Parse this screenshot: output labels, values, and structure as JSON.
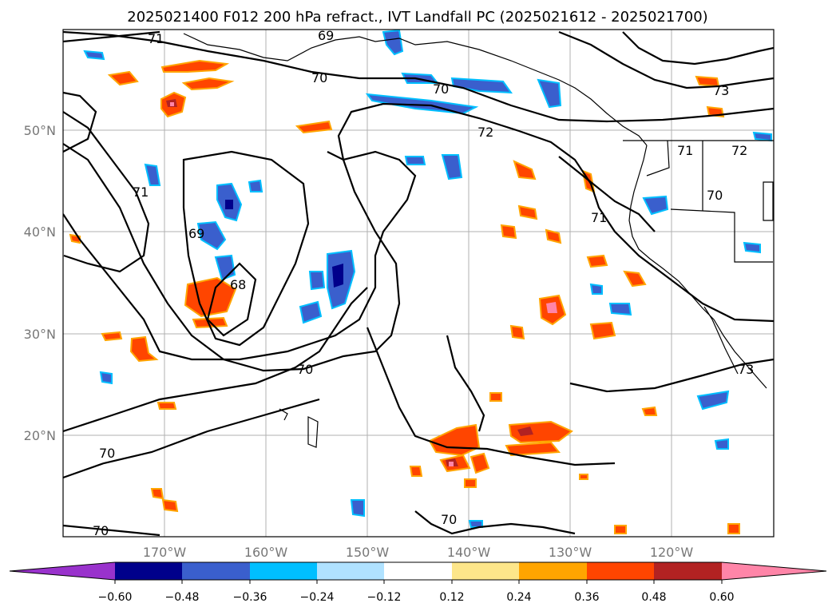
{
  "title": "2025021400 F012 200 hPa refract., IVT Landfall PC (2025021612 - 2025021700)",
  "lon_labels": [
    "170°W",
    "160°W",
    "150°W",
    "140°W",
    "130°W",
    "120°W"
  ],
  "lat_labels": [
    "50°N",
    "40°N",
    "30°N",
    "20°N"
  ],
  "contour_labels": [
    "71",
    "69",
    "70",
    "70",
    "72",
    "73",
    "71",
    "72",
    "70",
    "71",
    "71",
    "69",
    "68",
    "70",
    "73",
    "70",
    "70",
    "70"
  ],
  "colorbar": {
    "ticks": [
      "−0.60",
      "−0.48",
      "−0.36",
      "−0.24",
      "−0.12",
      "0.12",
      "0.24",
      "0.36",
      "0.48",
      "0.60"
    ],
    "colors": [
      "#9932cc",
      "#00008b",
      "#3a5fcd",
      "#00bfff",
      "#b0e2ff",
      "#ffffff",
      "#fde68a",
      "#ffa500",
      "#ff4500",
      "#b22222",
      "#ff85a8"
    ]
  },
  "colors": {
    "pos_low": "#fde68a",
    "pos_mid": "#ffa500",
    "pos_high": "#ff4500",
    "pos_max": "#b22222",
    "neg_low": "#b0e2ff",
    "neg_mid": "#00bfff",
    "neg_high": "#3a5fcd"
  }
}
